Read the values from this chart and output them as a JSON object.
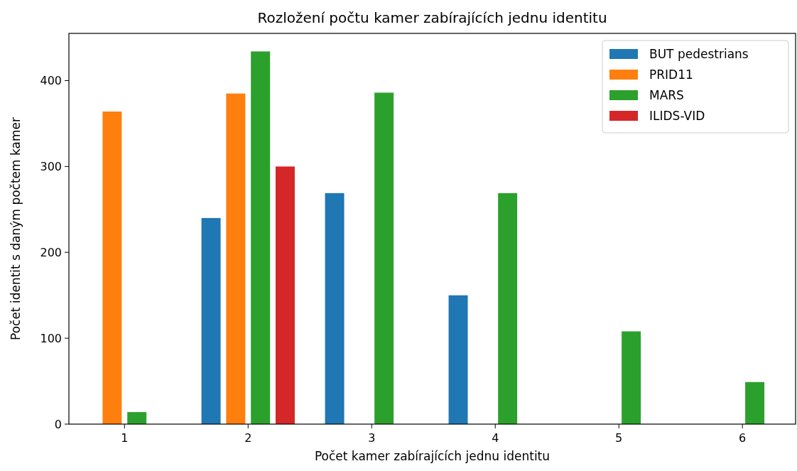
{
  "chart_data": {
    "type": "bar",
    "title": "Rozložení počtu kamer zabírajících jednu identitu",
    "xlabel": "Počet kamer zabírajících jednu identitu",
    "ylabel": "Počet identit s daným počtem kamer",
    "categories": [
      "1",
      "2",
      "3",
      "4",
      "5",
      "6"
    ],
    "series": [
      {
        "name": "BUT pedestrians",
        "color": "#1f77b4",
        "values": [
          null,
          240,
          269,
          150,
          null,
          null
        ]
      },
      {
        "name": "PRID11",
        "color": "#ff7f0e",
        "values": [
          364,
          385,
          null,
          null,
          null,
          null
        ]
      },
      {
        "name": "MARS",
        "color": "#2ca02c",
        "values": [
          14,
          434,
          386,
          269,
          108,
          49
        ]
      },
      {
        "name": "ILIDS-VID",
        "color": "#d62728",
        "values": [
          null,
          300,
          null,
          null,
          null,
          null
        ]
      }
    ],
    "ylim": [
      0,
      455
    ],
    "yticks": [
      0,
      100,
      200,
      300,
      400
    ],
    "grid": false,
    "legend": "top right"
  }
}
